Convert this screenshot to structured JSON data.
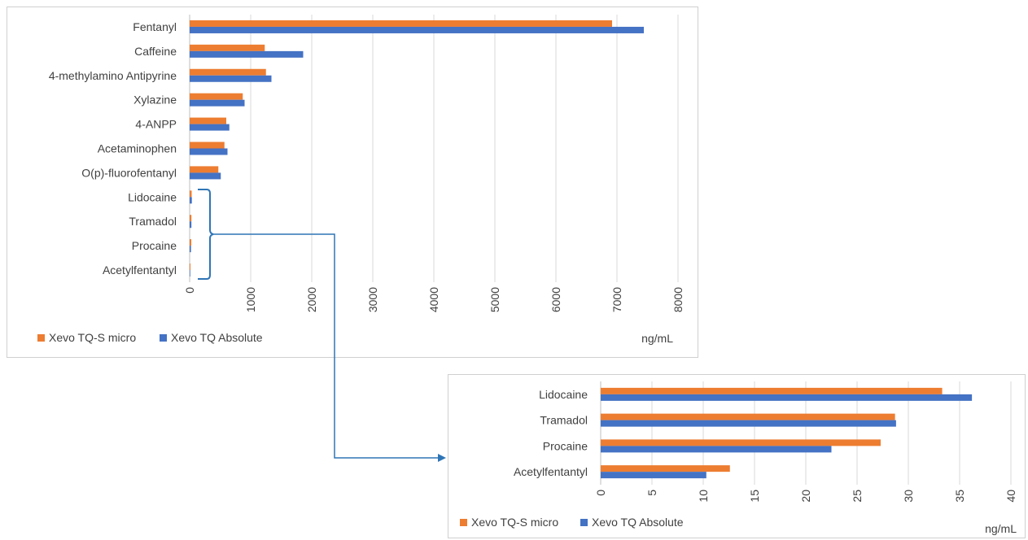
{
  "colors": {
    "series1": "#ED7D31",
    "series2": "#4472C4",
    "connector": "#2E75B6"
  },
  "chart_data": [
    {
      "type": "bar",
      "orientation": "horizontal",
      "categories": [
        "Fentanyl",
        "Caffeine",
        "4-methylamino Antipyrine",
        "Xylazine",
        "4-ANPP",
        "Acetaminophen",
        "O(p)-fluorofentanyl",
        "Lidocaine",
        "Tramadol",
        "Procaine",
        "Acetylfentantyl"
      ],
      "series": [
        {
          "name": "Xevo TQ-S micro",
          "values": [
            6920,
            1230,
            1250,
            870,
            600,
            570,
            470,
            33,
            29,
            27,
            13
          ]
        },
        {
          "name": "Xevo TQ Absolute",
          "values": [
            7440,
            1860,
            1340,
            900,
            650,
            620,
            510,
            36,
            29,
            22,
            10
          ]
        }
      ],
      "xlim": [
        0,
        8000
      ],
      "ticks": [
        "0",
        "1000",
        "2000",
        "3000",
        "4000",
        "5000",
        "6000",
        "7000",
        "8000"
      ],
      "unit": "ng/mL",
      "grid": true,
      "legend": "bottom-left"
    },
    {
      "type": "bar",
      "orientation": "horizontal",
      "categories": [
        "Lidocaine",
        "Tramadol",
        "Procaine",
        "Acetylfentantyl"
      ],
      "series": [
        {
          "name": "Xevo TQ-S micro",
          "values": [
            33.3,
            28.7,
            27.3,
            12.6
          ]
        },
        {
          "name": "Xevo TQ Absolute",
          "values": [
            36.2,
            28.8,
            22.5,
            10.3
          ]
        }
      ],
      "xlim": [
        0,
        40
      ],
      "ticks": [
        "0",
        "5",
        "10",
        "15",
        "20",
        "25",
        "30",
        "35",
        "40"
      ],
      "unit": "ng/mL",
      "grid": true,
      "legend": "bottom-left"
    }
  ]
}
